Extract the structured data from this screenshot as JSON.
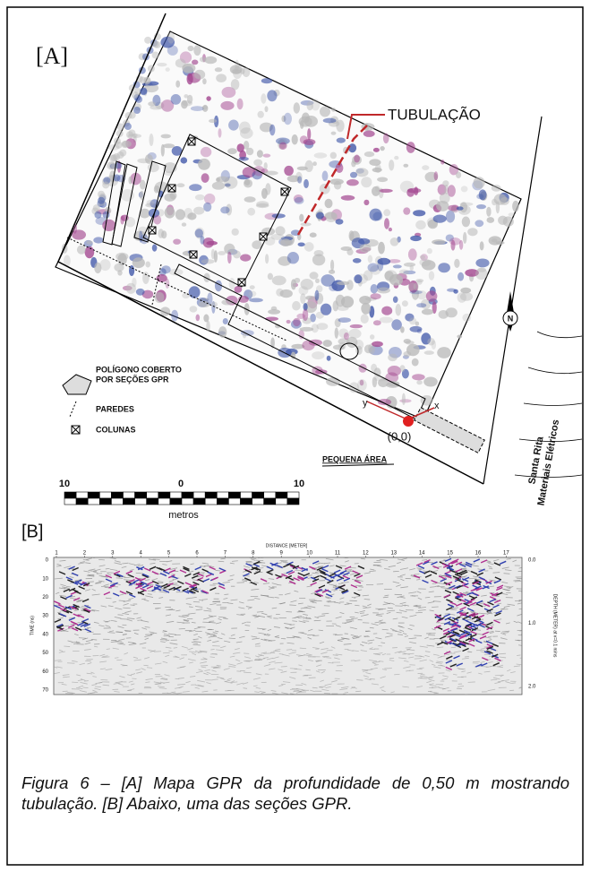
{
  "panel_a": {
    "label": "[A]",
    "pipe_label": "TUBULAÇÃO",
    "legend": {
      "polygon": [
        "POLÍGONO COBERTO",
        "POR SEÇÕES GPR"
      ],
      "walls": "PAREDES",
      "columns": "COLUNAS"
    },
    "origin": "(0,0)",
    "x_axis": "x",
    "y_axis": "y",
    "small_area": "PEQUENA ÁREA",
    "store": [
      "Santa Rita",
      "Materiais Elétricos"
    ],
    "north": "N",
    "scale": {
      "labels": [
        "10",
        "0",
        "10"
      ],
      "unit": "metros"
    }
  },
  "panel_b": {
    "label": "[B]",
    "x_title": "DISTANCE [METER]",
    "x_labels": [
      "1",
      "2",
      "3",
      "4",
      "5",
      "6",
      "7",
      "8",
      "9",
      "10",
      "11",
      "12",
      "13",
      "14",
      "15",
      "16",
      "17"
    ],
    "y_title": "TIME (ns)",
    "y_labels": [
      "0",
      "10",
      "20",
      "30",
      "40",
      "50",
      "60",
      "70"
    ],
    "y2_labels": [
      "0.0",
      "1.0",
      "2.0"
    ],
    "y2_title": "DEPTH (METER) at v=0.1 m/ns"
  },
  "caption": "Figura 6 – [A] Mapa GPR da profundidade de 0,50 m mostrando tubulação. [B] Abaixo, uma das seções GPR."
}
